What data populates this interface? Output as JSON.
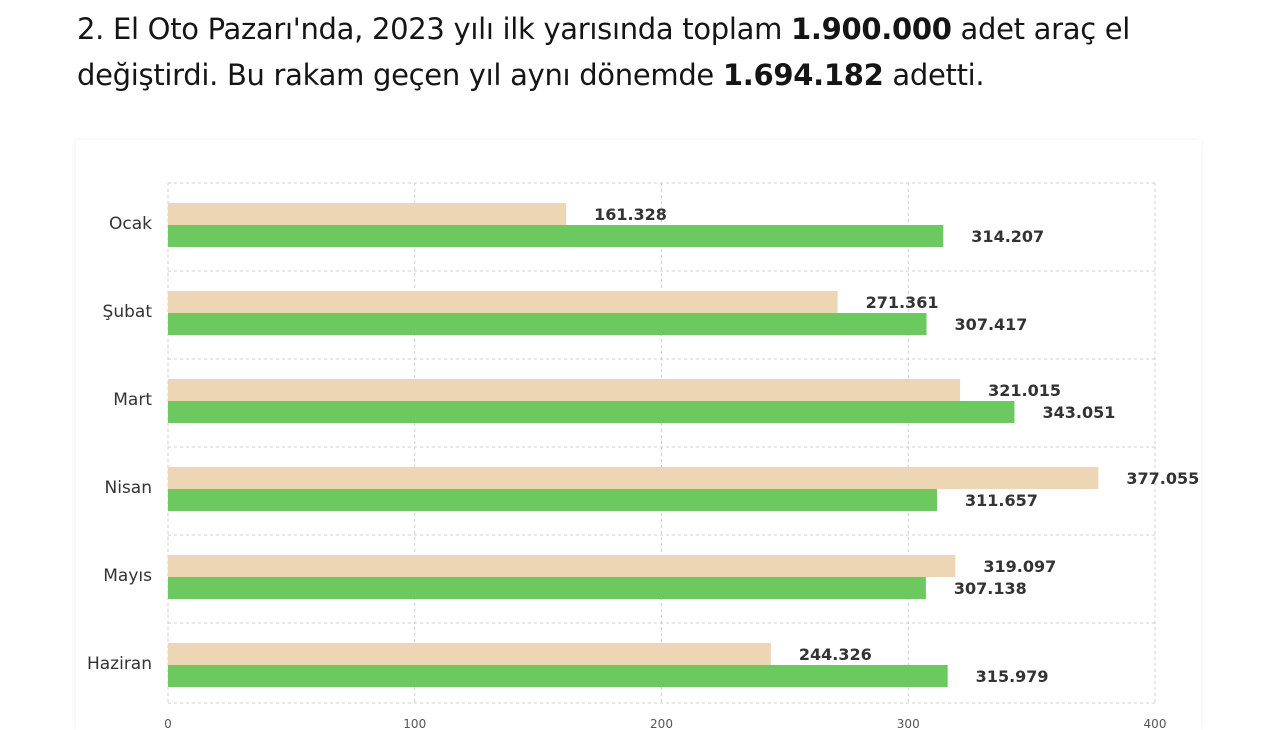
{
  "article": {
    "line1_before": "2. El Oto Pazarı'nda, 2023 yılı ilk yarısında toplam ",
    "line1_bold": "1.900.000",
    "line1_after": " adet araç el",
    "line2_before": "değiştirdi. Bu rakam geçen yıl aynı dönemde ",
    "line2_bold": "1.694.182",
    "line2_after": " adetti."
  },
  "chart_data": {
    "type": "bar",
    "orientation": "horizontal",
    "title": "",
    "xlabel": "",
    "ylabel": "",
    "categories": [
      "Ocak",
      "Şubat",
      "Mart",
      "Nisan",
      "Mayıs",
      "Haziran"
    ],
    "series": [
      {
        "color": "#ecd6b4",
        "values": [
          161.328,
          271.361,
          321.015,
          377.055,
          319.097,
          244.326
        ],
        "labels": [
          "161.328",
          "271.361",
          "321.015",
          "377.055",
          "319.097",
          "244.326"
        ]
      },
      {
        "color": "#6cc95f",
        "values": [
          314.207,
          307.417,
          343.051,
          311.657,
          307.138,
          315.979
        ],
        "labels": [
          "314.207",
          "307.417",
          "343.051",
          "311.657",
          "307.138",
          "315.979"
        ]
      }
    ],
    "xlim": [
      0,
      400
    ],
    "xticks": [
      "0",
      "100",
      "200",
      "300",
      "400"
    ],
    "grid": true
  }
}
